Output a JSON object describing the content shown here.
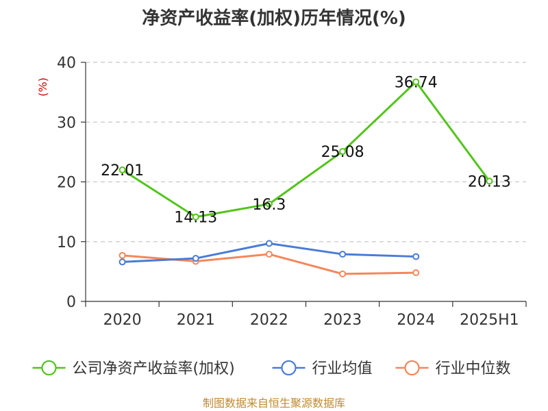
{
  "chart_data": {
    "type": "line",
    "title": "净资产收益率(加权)历年情况(%)",
    "ylabel": "(%)",
    "categories": [
      "2020",
      "2021",
      "2022",
      "2023",
      "2024",
      "2025H1"
    ],
    "ylim": [
      0,
      40
    ],
    "yticks": [
      0,
      10,
      20,
      30,
      40
    ],
    "grid": true,
    "legend_position": "bottom",
    "series": [
      {
        "name": "公司净资产收益率(加权)",
        "color": "#52c41a",
        "values": [
          22.01,
          14.13,
          16.3,
          25.08,
          36.74,
          20.13
        ],
        "labels": [
          "22.01",
          "14.13",
          "16.3",
          "25.08",
          "36.74",
          "20.13"
        ]
      },
      {
        "name": "行业均值",
        "color": "#4a7bd6",
        "values": [
          6.6,
          7.2,
          9.7,
          7.9,
          7.5,
          null
        ]
      },
      {
        "name": "行业中位数",
        "color": "#f4875a",
        "values": [
          7.7,
          6.7,
          7.9,
          4.6,
          4.8,
          null
        ]
      }
    ]
  },
  "footer": {
    "source": "制图数据来自恒生聚源数据库"
  }
}
